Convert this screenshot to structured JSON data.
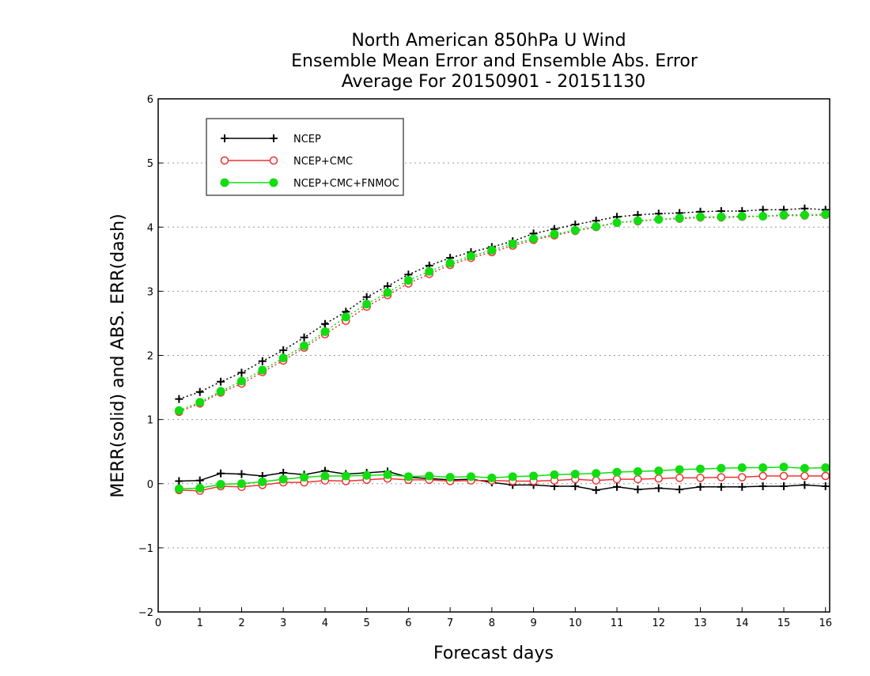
{
  "chart_data": {
    "type": "line",
    "title": [
      "North American 850hPa U Wind",
      "Ensemble Mean Error and Ensemble Abs. Error",
      "Average For 20150901 - 20151130"
    ],
    "xlabel": "Forecast days",
    "ylabel": "MERR(solid) and ABS. ERR(dash)",
    "xlim": [
      0,
      16.1
    ],
    "ylim": [
      -2,
      6
    ],
    "xticks": [
      "0",
      "1",
      "2",
      "3",
      "4",
      "5",
      "6",
      "7",
      "8",
      "9",
      "10",
      "11",
      "12",
      "13",
      "14",
      "15",
      "16"
    ],
    "yticks": [
      "-2",
      "-1",
      "0",
      "1",
      "2",
      "3",
      "4",
      "5",
      "6"
    ],
    "grid": true,
    "legend_position": "top-left",
    "x": [
      0.5,
      1,
      1.5,
      2,
      2.5,
      3,
      3.5,
      4,
      4.5,
      5,
      5.5,
      6,
      6.5,
      7,
      7.5,
      8,
      8.5,
      9,
      9.5,
      10,
      10.5,
      11,
      11.5,
      12,
      12.5,
      13,
      13.5,
      14,
      14.5,
      15,
      15.5,
      16
    ],
    "series": [
      {
        "name": "NCEP",
        "color": "#000000",
        "marker": "plus",
        "merr": [
          0.04,
          0.05,
          0.16,
          0.15,
          0.12,
          0.17,
          0.14,
          0.2,
          0.15,
          0.17,
          0.19,
          0.1,
          0.08,
          0.06,
          0.07,
          0.02,
          -0.02,
          -0.02,
          -0.04,
          -0.04,
          -0.1,
          -0.05,
          -0.09,
          -0.07,
          -0.09,
          -0.05,
          -0.05,
          -0.05,
          -0.04,
          -0.04,
          -0.02,
          -0.04
        ],
        "abs_err": [
          1.32,
          1.43,
          1.59,
          1.73,
          1.91,
          2.08,
          2.28,
          2.49,
          2.68,
          2.91,
          3.08,
          3.26,
          3.4,
          3.52,
          3.61,
          3.69,
          3.78,
          3.9,
          3.97,
          4.04,
          4.1,
          4.16,
          4.19,
          4.21,
          4.22,
          4.24,
          4.25,
          4.25,
          4.27,
          4.27,
          4.29,
          4.27
        ]
      },
      {
        "name": "NCEP+CMC",
        "color": "#ee3333",
        "marker": "open-circle",
        "merr": [
          -0.1,
          -0.11,
          -0.04,
          -0.05,
          -0.02,
          0.02,
          0.02,
          0.05,
          0.04,
          0.06,
          0.08,
          0.06,
          0.06,
          0.04,
          0.05,
          0.05,
          0.04,
          0.04,
          0.05,
          0.07,
          0.05,
          0.07,
          0.07,
          0.08,
          0.09,
          0.09,
          0.1,
          0.1,
          0.12,
          0.12,
          0.12,
          0.12
        ],
        "abs_err": [
          1.12,
          1.25,
          1.42,
          1.56,
          1.74,
          1.92,
          2.12,
          2.33,
          2.54,
          2.76,
          2.94,
          3.12,
          3.27,
          3.41,
          3.52,
          3.61,
          3.71,
          3.8,
          3.87,
          3.94,
          4.0,
          4.07,
          4.09,
          4.12,
          4.13,
          4.15,
          4.15,
          4.16,
          4.17,
          4.18,
          4.18,
          4.19
        ]
      },
      {
        "name": "NCEP+CMC+FNMOC",
        "color": "#11dd11",
        "marker": "filled-circle",
        "merr": [
          -0.08,
          -0.07,
          -0.01,
          0.0,
          0.03,
          0.07,
          0.1,
          0.12,
          0.12,
          0.13,
          0.14,
          0.11,
          0.12,
          0.1,
          0.11,
          0.09,
          0.11,
          0.12,
          0.14,
          0.15,
          0.16,
          0.18,
          0.19,
          0.2,
          0.22,
          0.23,
          0.24,
          0.25,
          0.25,
          0.26,
          0.24,
          0.25
        ],
        "abs_err": [
          1.14,
          1.27,
          1.44,
          1.6,
          1.77,
          1.96,
          2.15,
          2.37,
          2.6,
          2.8,
          2.98,
          3.17,
          3.31,
          3.44,
          3.55,
          3.64,
          3.74,
          3.82,
          3.89,
          3.95,
          4.01,
          4.07,
          4.1,
          4.12,
          4.14,
          4.16,
          4.16,
          4.17,
          4.17,
          4.19,
          4.19,
          4.2
        ]
      }
    ]
  }
}
